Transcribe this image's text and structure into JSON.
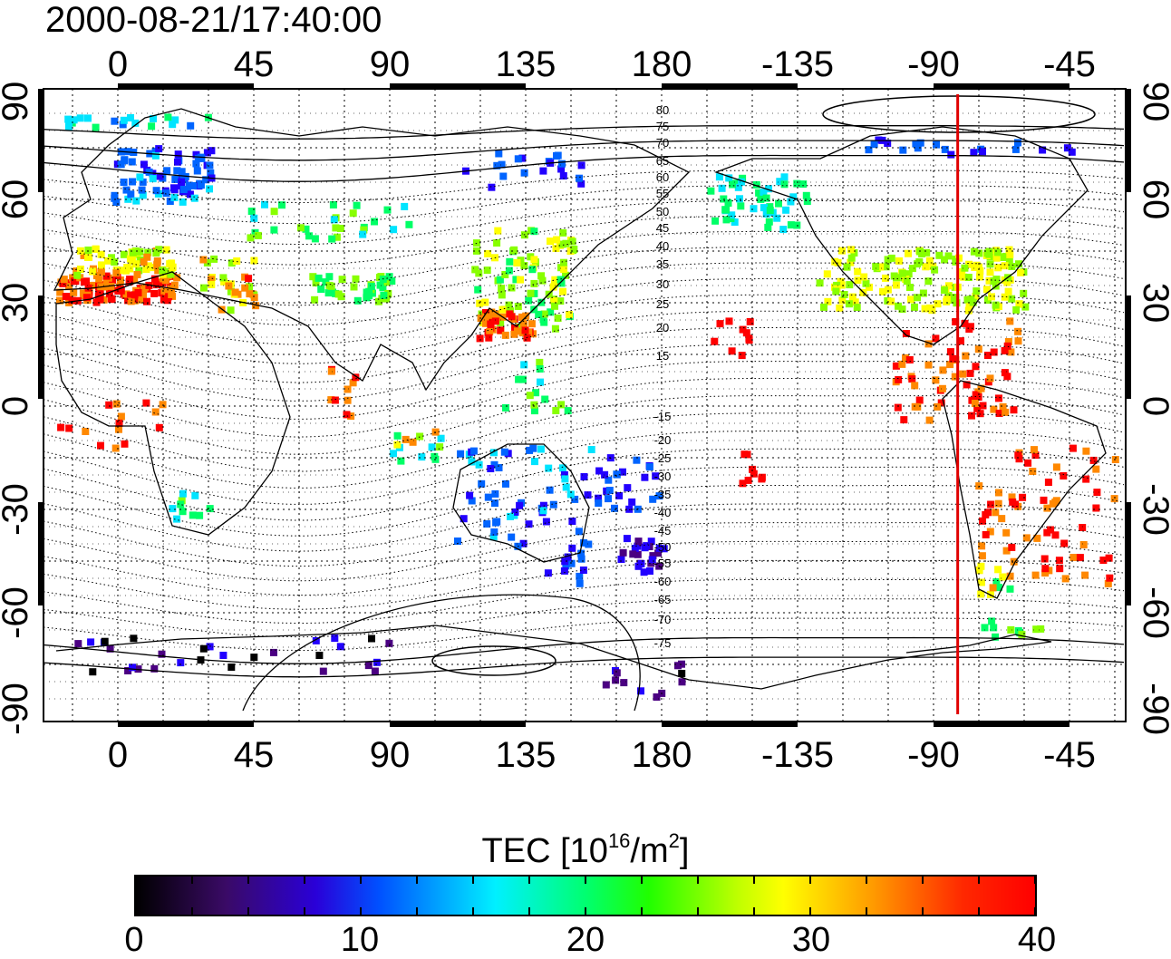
{
  "timestamp": "2000-08-21/17:40:00",
  "map": {
    "top_tick_labels": [
      "0",
      "45",
      "90",
      "135",
      "180",
      "-135",
      "-90",
      "-45"
    ],
    "bottom_tick_labels": [
      "0",
      "45",
      "90",
      "135",
      "180",
      "-135",
      "-90",
      "-45"
    ],
    "left_tick_labels": [
      "90",
      "60",
      "30",
      "0",
      "-30",
      "-60",
      "-90"
    ],
    "right_tick_labels": [
      "90",
      "60",
      "30",
      "0",
      "-30",
      "-60",
      "-90"
    ],
    "contour_labels_north": [
      "80",
      "75",
      "70",
      "65",
      "60",
      "55",
      "50",
      "45",
      "40",
      "35",
      "30",
      "25",
      "20",
      "15"
    ],
    "contour_labels_south": [
      "-15",
      "-20",
      "-25",
      "-30",
      "-35",
      "-40",
      "-45",
      "-50",
      "-55",
      "-60",
      "-65",
      "-70",
      "-75"
    ],
    "marker_longitude": -82,
    "marker_color": "#e00000"
  },
  "colorbar": {
    "title_prefix": "TEC  [10",
    "title_exp1": "16",
    "title_mid": "/m",
    "title_exp2": "2",
    "title_suffix": "]",
    "tick_labels": [
      "0",
      "10",
      "20",
      "30",
      "40"
    ],
    "range": [
      0,
      40
    ]
  },
  "tec_palette": [
    "#000000",
    "#4b0082",
    "#2200ff",
    "#0064ff",
    "#00e4ff",
    "#00ff66",
    "#88ff00",
    "#ffff00",
    "#ff8800",
    "#ff0000"
  ]
}
